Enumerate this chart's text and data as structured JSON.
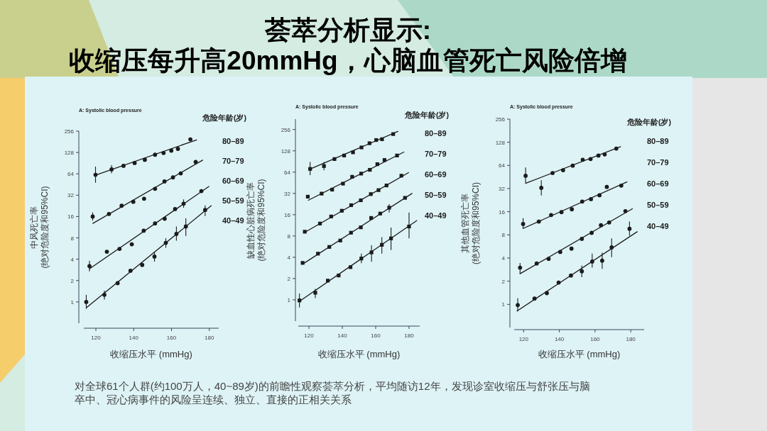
{
  "chart_data": [
    {
      "type": "other",
      "title": "荟萃分析显示:\n收缩压每升高20mmHg，心脑血管死亡风险倍增",
      "annotations": [
        "对全球61个人群(约100万人，40~89岁)的前瞻性观察荟萃分析，平均随访12年，发现诊室收缩压与舒张压与脑卒中、冠心病事件的风险呈连续、独立、直接的正相关关系"
      ]
    },
    {
      "type": "scatter",
      "subtitle": "A: Systolic blood pressure",
      "xlabel": "收缩压水平 (mmHg)",
      "ylabel": "中风死亡率\n(绝对危险度和95%CI)",
      "legend_title": "危险年龄(岁)",
      "log": "y",
      "marker": "circle",
      "xlim": [
        113.6,
        185
      ],
      "ylim": [
        0.5,
        256
      ],
      "xticks": [
        120,
        140,
        160,
        180
      ],
      "yticks": [
        1,
        2,
        4,
        8,
        16,
        32,
        64,
        128,
        256
      ],
      "annotations": [
        "40–49"
      ],
      "series": [
        {
          "name": "80–89",
          "color": "#1b1b1b",
          "x": [
            119.8,
            128.3,
            134.6,
            140.5,
            145.9,
            151.3,
            155.8,
            159.9,
            163.4,
            170
          ],
          "values": [
            62,
            74,
            83,
            91,
            101,
            119,
            126,
            136,
            144,
            196
          ],
          "errors": [
            [
              48,
              81
            ],
            [
              65,
              85
            ],
            null,
            null,
            null,
            null,
            null,
            null,
            null,
            null
          ]
        },
        {
          "type": "line",
          "marker": "none",
          "color": "#1b1b1b",
          "x": [
            119.5,
            173.3
          ],
          "values": [
            61,
            193
          ]
        },
        {
          "name": "70–79",
          "color": "#1b1b1b",
          "x": [
            118.3,
            126.9,
            133.6,
            139.8,
            145.5,
            151.3,
            156.3,
            160.8,
            164.9,
            172.8
          ],
          "values": [
            16,
            17.4,
            22.7,
            25.8,
            28.5,
            39.4,
            50,
            57,
            65,
            94
          ],
          "errors": [
            [
              14,
              18.3
            ],
            null,
            null,
            null,
            null,
            null,
            null,
            null,
            null,
            null
          ]
        },
        {
          "type": "line",
          "marker": "none",
          "color": "#1b1b1b",
          "x": [
            118.4,
            176.5
          ],
          "values": [
            12.8,
            100
          ]
        },
        {
          "name": "60–69",
          "color": "#1b1b1b",
          "x": [
            116.6,
            125.8,
            132.5,
            139,
            145.3,
            151.3,
            156.4,
            161.9,
            166.4,
            175.8
          ],
          "values": [
            3.2,
            5.1,
            5.6,
            6.5,
            10.1,
            12.8,
            14.9,
            20.4,
            24.3,
            36.5
          ],
          "errors": [
            [
              2.7,
              3.8
            ],
            null,
            null,
            null,
            null,
            null,
            null,
            null,
            [
              21.3,
              27.9
            ],
            null
          ]
        },
        {
          "type": "line",
          "marker": "none",
          "color": "#1b1b1b",
          "x": [
            116.6,
            179.8
          ],
          "values": [
            2.92,
            42.5
          ]
        },
        {
          "name": "50–59",
          "color": "#1b1b1b",
          "x": [
            114.9,
            124.5,
            131.5,
            138.3,
            144.5,
            151,
            157,
            162.6,
            167.6,
            177.8
          ],
          "values": [
            1,
            1.26,
            1.84,
            2.75,
            3.32,
            4.35,
            6.8,
            9.1,
            11.6,
            19.8
          ],
          "errors": [
            [
              0.8,
              1.26
            ],
            [
              1.08,
              1.44
            ],
            null,
            null,
            null,
            [
              3.7,
              5
            ],
            [
              5.8,
              7.9
            ],
            [
              7.3,
              11.6
            ],
            [
              8.5,
              15.1
            ],
            [
              16.3,
              23
            ]
          ]
        },
        {
          "type": "line",
          "marker": "none",
          "color": "#1b1b1b",
          "x": [
            115,
            181
          ],
          "values": [
            0.83,
            22.7
          ]
        }
      ]
    },
    {
      "type": "scatter",
      "subtitle": "A: Systolic blood pressure",
      "xlabel": "收缩压水平 (mmHg)",
      "ylabel": "缺血性心脏病死亡率\n(绝对危险度和95%CI)",
      "legend_title": "危险年龄(岁)",
      "log": "y",
      "marker": "square",
      "xlim": [
        113.6,
        186.4
      ],
      "ylim": [
        0.5,
        360
      ],
      "xticks": [
        120,
        140,
        160,
        180
      ],
      "yticks": [
        1,
        2,
        4,
        8,
        16,
        32,
        64,
        128,
        256
      ],
      "series": [
        {
          "name": "80–89",
          "color": "#1b1b1b",
          "x": [
            120.7,
            129,
            135.3,
            141.1,
            146.4,
            151.5,
            156.3,
            160.3,
            163.8,
            170.5
          ],
          "values": [
            71,
            78,
            98,
            110,
            122,
            143,
            164,
            182,
            187,
            221
          ],
          "errors": [
            [
              58,
              89
            ],
            [
              68,
              89
            ],
            null,
            null,
            null,
            null,
            null,
            null,
            null,
            null
          ]
        },
        {
          "type": "line",
          "marker": "none",
          "color": "#1b1b1b",
          "x": [
            120.3,
            173.3
          ],
          "values": [
            70,
            241
          ]
        },
        {
          "name": "70–79",
          "color": "#1b1b1b",
          "x": [
            119.3,
            127.6,
            133.9,
            140.4,
            145.9,
            151.3,
            156.5,
            161,
            165.3,
            172.8
          ],
          "values": [
            28.8,
            31.8,
            36.2,
            44,
            55,
            61,
            69,
            83,
            95,
            110
          ]
        },
        {
          "type": "line",
          "marker": "none",
          "color": "#1b1b1b",
          "x": [
            119.6,
            176.9
          ],
          "values": [
            25.6,
            123
          ]
        },
        {
          "name": "60–69",
          "color": "#1b1b1b",
          "x": [
            117.5,
            126.6,
            133.3,
            139.7,
            145.3,
            151.1,
            157.1,
            161.7,
            166.5,
            175.4
          ],
          "values": [
            9.2,
            12,
            15.1,
            18.2,
            21.8,
            25.6,
            31.3,
            35.6,
            41.5,
            57
          ]
        },
        {
          "type": "line",
          "marker": "none",
          "color": "#1b1b1b",
          "x": [
            117.5,
            179.7
          ],
          "values": [
            9,
            63
          ]
        },
        {
          "name": "50–59",
          "color": "#1b1b1b",
          "x": [
            116.2,
            125.4,
            132.2,
            138.8,
            145.2,
            151.1,
            157.3,
            162.7,
            168.1,
            177.6
          ],
          "values": [
            3.33,
            4.5,
            5.6,
            6.9,
            8.9,
            10.6,
            14.4,
            16.6,
            20.1,
            27.7
          ],
          "errors": [
            null,
            null,
            null,
            null,
            null,
            null,
            null,
            null,
            [
              17.2,
              22.5
            ],
            null
          ]
        },
        {
          "type": "line",
          "marker": "none",
          "color": "#1b1b1b",
          "x": [
            116.2,
            181.8
          ],
          "values": [
            3.2,
            32
          ]
        },
        {
          "name": "40–49",
          "color": "#1b1b1b",
          "x": [
            114.3,
            123.8,
            131.3,
            137.8,
            144.9,
            151.4,
            157.5,
            163.7,
            169.2,
            180
          ],
          "values": [
            0.98,
            1.26,
            1.87,
            2.21,
            2.9,
            3.84,
            4.69,
            6,
            7.4,
            10.9
          ],
          "errors": [
            [
              0.78,
              1.23
            ],
            [
              1.06,
              1.43
            ],
            null,
            null,
            null,
            [
              3.3,
              4.5
            ],
            [
              3.45,
              5.9
            ],
            [
              4.5,
              7.7
            ],
            [
              5.06,
              10.5
            ],
            [
              7.4,
              17.2
            ]
          ]
        },
        {
          "type": "line",
          "marker": "none",
          "color": "#1b1b1b",
          "x": [
            114.2,
            184.6
          ],
          "values": [
            0.95,
            13.2
          ]
        }
      ]
    },
    {
      "type": "scatter",
      "subtitle": "A: Systolic blood pressure",
      "xlabel": "收缩压水平 (mmHg)",
      "ylabel": "其他血管死亡率\n(绝对危险度和95%CI)",
      "legend_title": "危险年龄(岁)",
      "log": "y",
      "marker": "circle",
      "xlim": [
        114.7,
        187.5
      ],
      "ylim": [
        0.5,
        256
      ],
      "xticks": [
        120,
        140,
        160,
        180
      ],
      "yticks": [
        1,
        2,
        4,
        8,
        16,
        32,
        64,
        128,
        256
      ],
      "annotations": [
        "40–49"
      ],
      "series": [
        {
          "name": "80–89",
          "color": "#1b1b1b",
          "x": [
            121.1,
            129.9,
            136.2,
            142.1,
            147.5,
            153.1,
            157.5,
            161.9,
            165.4,
            171.9
          ],
          "values": [
            47,
            32.7,
            51,
            55.5,
            63.5,
            75.8,
            77.5,
            86,
            89,
            106
          ],
          "errors": [
            [
              37,
              60
            ],
            [
              26,
              41
            ],
            null,
            null,
            null,
            null,
            null,
            null,
            null,
            null
          ]
        },
        {
          "type": "line",
          "marker": "none",
          "color": "#1b1b1b",
          "x": [
            121.3,
            174.3
          ],
          "values": [
            37.6,
            112
          ]
        },
        {
          "name": "70–79",
          "color": "#1b1b1b",
          "x": [
            119.7,
            128.5,
            135.4,
            141.2,
            147,
            152.8,
            157.7,
            162.5,
            166.6,
            174.7
          ],
          "values": [
            11.1,
            11.9,
            14.5,
            15.8,
            17.2,
            21.7,
            23.3,
            26.2,
            33.6,
            35
          ],
          "errors": [
            [
              9.6,
              13.2
            ],
            null,
            null,
            null,
            null,
            null,
            null,
            null,
            null,
            null
          ]
        },
        {
          "type": "line",
          "marker": "none",
          "color": "#1b1b1b",
          "x": [
            119.7,
            177.9
          ],
          "values": [
            9.7,
            39
          ]
        },
        {
          "name": "60–69",
          "color": "#1b1b1b",
          "x": [
            118,
            127.3,
            134,
            140.5,
            146.8,
            152.6,
            158.1,
            163.3,
            167.9,
            177
          ],
          "values": [
            3,
            3.4,
            3.9,
            4.8,
            5.3,
            7.1,
            8.5,
            10.7,
            11.6,
            16.3
          ],
          "errors": [
            [
              2.5,
              3.45
            ],
            null,
            null,
            null,
            null,
            null,
            null,
            null,
            null,
            null
          ]
        },
        {
          "type": "line",
          "marker": "none",
          "color": "#1b1b1b",
          "x": [
            118,
            180.9
          ],
          "values": [
            2.5,
            17.5
          ]
        },
        {
          "name": "50–59",
          "color": "#1b1b1b",
          "x": [
            116.7,
            126.1,
            133,
            139.6,
            146.5,
            152.6,
            158.4,
            164,
            169.3,
            179.3
          ],
          "values": [
            0.98,
            1.19,
            1.4,
            1.92,
            2.37,
            2.69,
            3.6,
            3.7,
            5.5,
            9.6
          ],
          "errors": [
            [
              0.81,
              1.2
            ],
            null,
            null,
            null,
            null,
            [
              2.25,
              3.2
            ],
            [
              3,
              4.57
            ],
            [
              2.9,
              4.7
            ],
            [
              4.1,
              7.2
            ],
            [
              7.8,
              11.9
            ]
          ]
        },
        {
          "type": "line",
          "marker": "none",
          "color": "#1b1b1b",
          "x": [
            116.3,
            183.6
          ],
          "values": [
            0.82,
            8.8
          ]
        }
      ]
    }
  ]
}
